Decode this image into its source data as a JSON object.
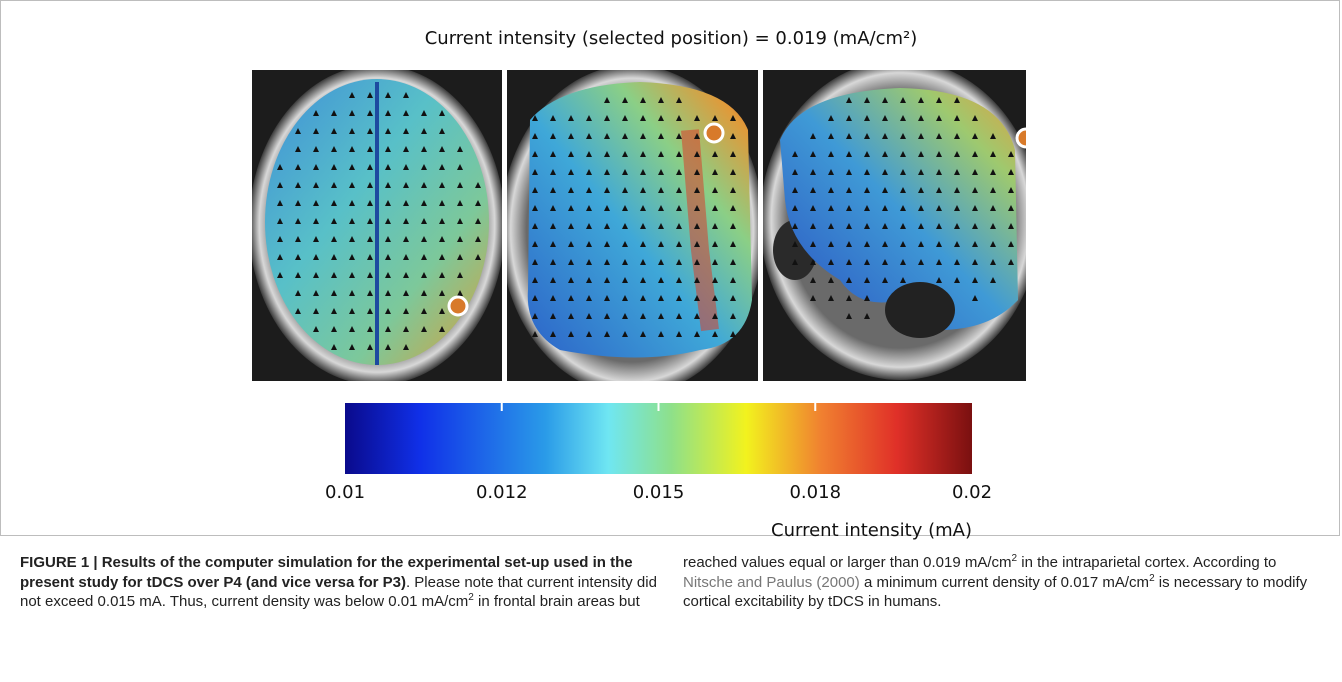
{
  "figure": {
    "title": "Current intensity (selected position) = 0.019 (mA/cm²)",
    "colorbar": {
      "ticks": [
        0.01,
        0.012,
        0.015,
        0.018,
        0.02
      ],
      "label": "Current intensity (mA)"
    },
    "caption": {
      "label": "FIGURE 1 | Results of the computer simulation for the experimental set-up used in the present study for tDCS over P4 (and vice versa for P3)",
      "segments": [
        ". Please note that current intensity did not exceed 0.015 mA. Thus, current density was below 0.01 mA/cm",
        "2",
        " in frontal brain areas but reached values equal or larger than 0.019 mA/cm",
        "2",
        " in the intraparietal cortex. According to ",
        "Nitsche and Paulus (2000)",
        " a minimum current density of 0.017 mA/cm",
        "2",
        " is necessary to modify cortical excitability by tDCS in humans."
      ]
    }
  }
}
